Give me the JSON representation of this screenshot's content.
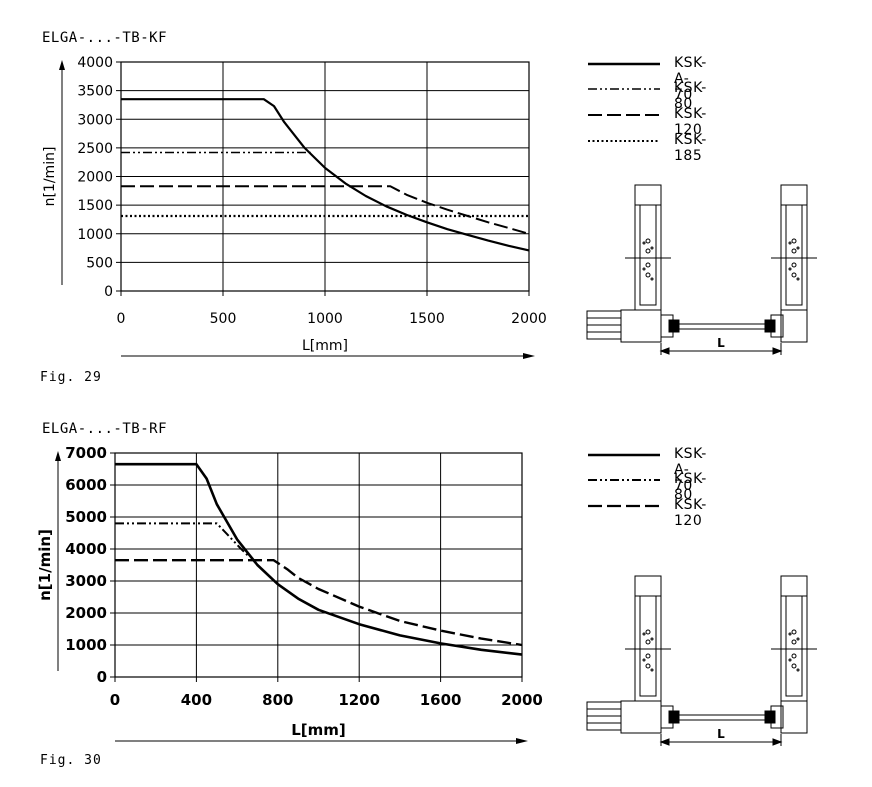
{
  "charts": [
    {
      "title": "ELGA-...-TB-KF",
      "fig_label": "Fig. 29",
      "diagram_dim_label": "L"
    },
    {
      "title": "ELGA-...-TB-RF",
      "fig_label": "Fig. 30",
      "diagram_dim_label": "L"
    }
  ],
  "chart_data": [
    {
      "type": "line",
      "title": "ELGA-...-TB-KF",
      "xlabel": "L[mm]",
      "ylabel": "n[1/min]",
      "xlim": [
        0,
        2000
      ],
      "ylim": [
        0,
        4000
      ],
      "xticks": [
        0,
        500,
        1000,
        1500,
        2000
      ],
      "yticks": [
        0,
        500,
        1000,
        1500,
        2000,
        2500,
        3000,
        3500,
        4000
      ],
      "grid": true,
      "legend_position": "right",
      "series": [
        {
          "name": "KSK-A-70",
          "style": "solid",
          "x": [
            0,
            700,
            750,
            800,
            900,
            1000,
            1100,
            1200,
            1300,
            1400,
            1500,
            1600,
            1700,
            1800,
            1900,
            2000
          ],
          "y": [
            3350,
            3350,
            3230,
            2950,
            2500,
            2150,
            1880,
            1660,
            1480,
            1330,
            1200,
            1080,
            980,
            880,
            790,
            710
          ]
        },
        {
          "name": "KSK-80",
          "style": "dash-dot-dot",
          "x": [
            0,
            930
          ],
          "y": [
            2420,
            2420
          ]
        },
        {
          "name": "KSK-120",
          "style": "long-dash",
          "x": [
            0,
            1320,
            1400,
            1500,
            1600,
            1700,
            1800,
            1900,
            2000
          ],
          "y": [
            1830,
            1830,
            1680,
            1540,
            1420,
            1310,
            1200,
            1100,
            1000
          ]
        },
        {
          "name": "KSK-185",
          "style": "dotted",
          "x": [
            0,
            2000
          ],
          "y": [
            1310,
            1310
          ]
        }
      ]
    },
    {
      "type": "line",
      "title": "ELGA-...-TB-RF",
      "xlabel": "L[mm]",
      "ylabel": "n[1/min]",
      "xlim": [
        0,
        2000
      ],
      "ylim": [
        0,
        7000
      ],
      "xticks": [
        0,
        400,
        800,
        1200,
        1600,
        2000
      ],
      "yticks": [
        0,
        1000,
        2000,
        3000,
        4000,
        5000,
        6000,
        7000
      ],
      "grid": true,
      "legend_position": "right",
      "series": [
        {
          "name": "KSK-A-70",
          "style": "solid",
          "x": [
            0,
            400,
            450,
            500,
            600,
            700,
            800,
            900,
            1000,
            1200,
            1400,
            1600,
            1800,
            2000
          ],
          "y": [
            6650,
            6650,
            6200,
            5400,
            4300,
            3500,
            2900,
            2450,
            2100,
            1650,
            1300,
            1050,
            850,
            700
          ]
        },
        {
          "name": "KSK-80",
          "style": "dash-dot-dot",
          "x": [
            0,
            500,
            560,
            620,
            660
          ],
          "y": [
            4800,
            4800,
            4400,
            4000,
            3750
          ]
        },
        {
          "name": "KSK-120",
          "style": "long-dash",
          "x": [
            0,
            780,
            850,
            900,
            1000,
            1200,
            1400,
            1600,
            1800,
            2000
          ],
          "y": [
            3650,
            3650,
            3350,
            3100,
            2750,
            2200,
            1750,
            1450,
            1200,
            1000
          ]
        }
      ]
    }
  ]
}
